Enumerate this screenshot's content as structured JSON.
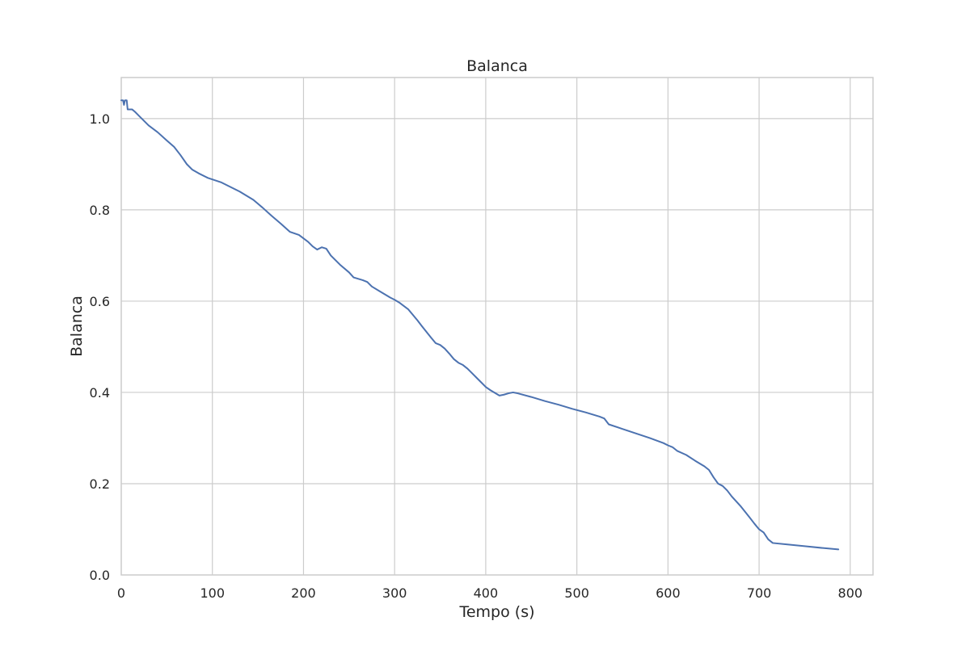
{
  "chart_data": {
    "type": "line",
    "title": "Balanca",
    "xlabel": "Tempo (s)",
    "ylabel": "Balanca",
    "xlim": [
      0,
      825
    ],
    "ylim": [
      0,
      1.09
    ],
    "xticks": [
      0,
      100,
      200,
      300,
      400,
      500,
      600,
      700,
      800
    ],
    "yticks": [
      0.0,
      0.2,
      0.4,
      0.6,
      0.8,
      1.0
    ],
    "xtick_labels": [
      "0",
      "100",
      "200",
      "300",
      "400",
      "500",
      "600",
      "700",
      "800"
    ],
    "ytick_labels": [
      "0.0",
      "0.2",
      "0.4",
      "0.6",
      "0.8",
      "1.0"
    ],
    "grid": true,
    "legend": "none",
    "colors": {
      "line": "#4c72b0",
      "grid": "#cccccc",
      "spine": "#cccccc",
      "text": "#262626",
      "background": "#ffffff"
    },
    "series": [
      {
        "x": [
          0,
          2,
          3,
          4,
          5,
          6,
          7,
          8,
          10,
          12,
          15,
          20,
          25,
          30,
          40,
          50,
          58,
          65,
          72,
          78,
          85,
          95,
          110,
          130,
          145,
          155,
          165,
          175,
          185,
          195,
          205,
          210,
          215,
          220,
          225,
          230,
          240,
          250,
          255,
          265,
          270,
          275,
          285,
          295,
          300,
          305,
          315,
          320,
          325,
          330,
          340,
          345,
          350,
          355,
          360,
          365,
          370,
          375,
          380,
          385,
          390,
          395,
          400,
          405,
          410,
          415,
          420,
          425,
          430,
          435,
          450,
          465,
          480,
          495,
          510,
          525,
          530,
          535,
          550,
          565,
          580,
          595,
          600,
          605,
          610,
          620,
          630,
          640,
          645,
          650,
          655,
          660,
          665,
          670,
          680,
          690,
          695,
          700,
          705,
          710,
          715,
          730,
          750,
          770,
          787
        ],
        "y": [
          1.04,
          1.04,
          1.03,
          1.04,
          1.04,
          1.04,
          1.02,
          1.02,
          1.02,
          1.02,
          1.015,
          1.005,
          0.995,
          0.985,
          0.97,
          0.952,
          0.938,
          0.92,
          0.9,
          0.888,
          0.88,
          0.87,
          0.86,
          0.84,
          0.822,
          0.805,
          0.787,
          0.77,
          0.752,
          0.745,
          0.73,
          0.72,
          0.713,
          0.718,
          0.715,
          0.7,
          0.68,
          0.663,
          0.652,
          0.646,
          0.642,
          0.632,
          0.62,
          0.608,
          0.603,
          0.597,
          0.582,
          0.57,
          0.558,
          0.545,
          0.52,
          0.508,
          0.504,
          0.496,
          0.485,
          0.473,
          0.465,
          0.46,
          0.452,
          0.442,
          0.432,
          0.422,
          0.412,
          0.405,
          0.399,
          0.393,
          0.395,
          0.398,
          0.4,
          0.398,
          0.39,
          0.381,
          0.373,
          0.364,
          0.356,
          0.347,
          0.343,
          0.33,
          0.32,
          0.31,
          0.3,
          0.289,
          0.284,
          0.28,
          0.272,
          0.263,
          0.25,
          0.238,
          0.23,
          0.214,
          0.2,
          0.195,
          0.185,
          0.172,
          0.15,
          0.125,
          0.112,
          0.1,
          0.093,
          0.078,
          0.07,
          0.067,
          0.063,
          0.059,
          0.056
        ]
      }
    ]
  }
}
